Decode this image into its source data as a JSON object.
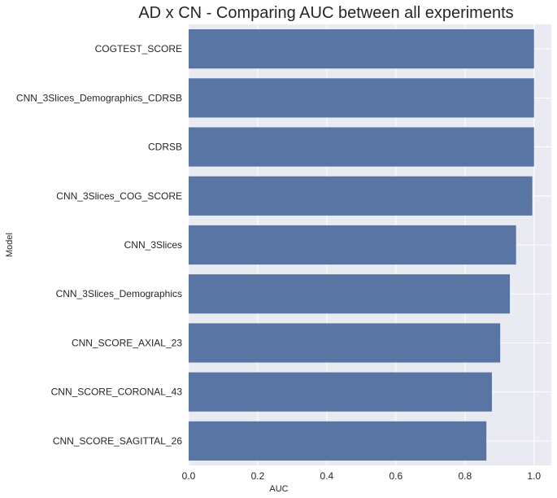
{
  "chart_data": {
    "type": "bar",
    "orientation": "horizontal",
    "title": "AD x CN - Comparing AUC between all experiments",
    "xlabel": "AUC",
    "ylabel": "Model",
    "xlim": [
      0,
      1.05
    ],
    "x_ticks": [
      0.0,
      0.2,
      0.4,
      0.6,
      0.8,
      1.0
    ],
    "x_tick_labels": [
      "0.0",
      "0.2",
      "0.4",
      "0.6",
      "0.8",
      "1.0"
    ],
    "grid": true,
    "categories": [
      "COGTEST_SCORE",
      "CNN_3Slices_Demographics_CDRSB",
      "CDRSB",
      "CNN_3Slices_COG_SCORE",
      "CNN_3Slices",
      "CNN_3Slices_Demographics",
      "CNN_SCORE_AXIAL_23",
      "CNN_SCORE_CORONAL_43",
      "CNN_SCORE_SAGITTAL_26"
    ],
    "values": [
      1.0,
      1.0,
      1.0,
      0.995,
      0.948,
      0.93,
      0.902,
      0.878,
      0.862
    ],
    "colors": {
      "bar": "#5975a4",
      "background": "#eaeaf2",
      "grid": "#ffffff"
    }
  }
}
